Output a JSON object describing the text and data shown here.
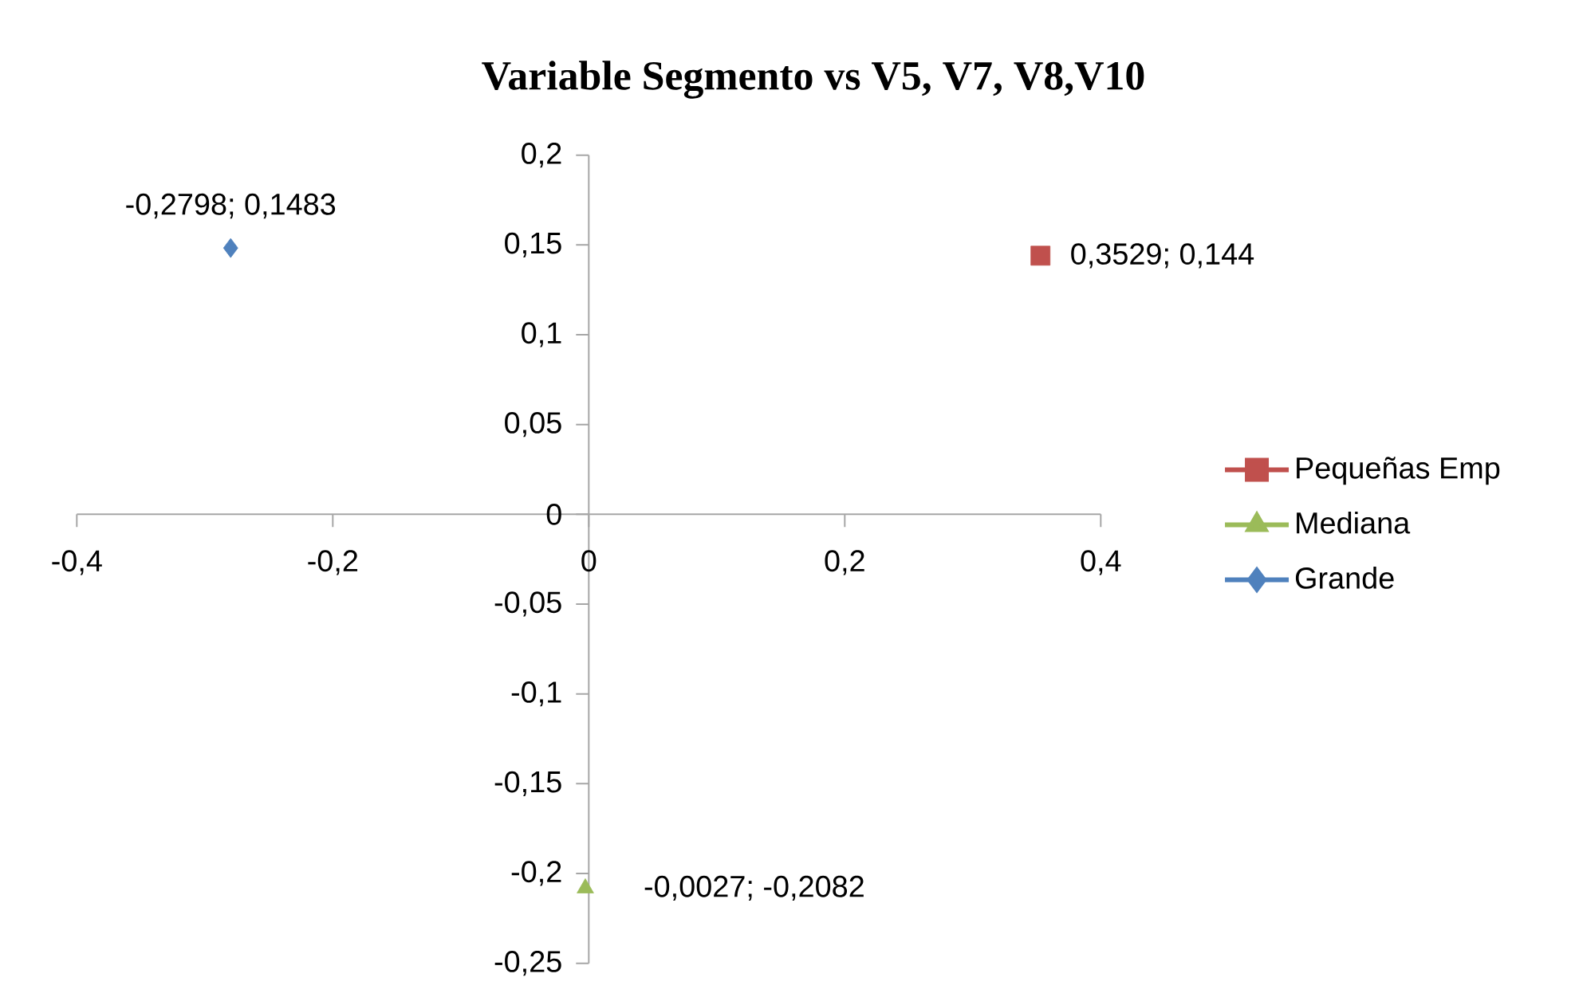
{
  "chart_data": {
    "type": "scatter",
    "title": "Variable Segmento vs V5, V7, V8,V10",
    "xlim": [
      -0.4,
      0.4
    ],
    "ylim": [
      -0.25,
      0.2
    ],
    "xticks": [
      {
        "value": -0.4,
        "label": "-0,4"
      },
      {
        "value": -0.2,
        "label": "-0,2"
      },
      {
        "value": 0,
        "label": "0"
      },
      {
        "value": 0.2,
        "label": "0,2"
      },
      {
        "value": 0.4,
        "label": "0,4"
      }
    ],
    "yticks": [
      {
        "value": -0.25,
        "label": "-0,25"
      },
      {
        "value": -0.2,
        "label": "-0,2"
      },
      {
        "value": -0.15,
        "label": "-0,15"
      },
      {
        "value": -0.1,
        "label": "-0,1"
      },
      {
        "value": -0.05,
        "label": "-0,05"
      },
      {
        "value": 0,
        "label": "0"
      },
      {
        "value": 0.05,
        "label": "0,05"
      },
      {
        "value": 0.1,
        "label": "0,1"
      },
      {
        "value": 0.15,
        "label": "0,15"
      },
      {
        "value": 0.2,
        "label": "0,2"
      }
    ],
    "legend": "right",
    "series": [
      {
        "name": "Pequeñas Emp",
        "color": "#c0504d",
        "marker": "square",
        "x": [
          0.3529
        ],
        "values": [
          0.144
        ],
        "value_labels": [
          "0,3529; 0,144"
        ]
      },
      {
        "name": "Mediana",
        "color": "#9bbb59",
        "marker": "triangle",
        "x": [
          -0.0027
        ],
        "values": [
          -0.2082
        ],
        "value_labels": [
          "-0,0027; -0,2082"
        ]
      },
      {
        "name": "Grande",
        "color": "#4f81bd",
        "marker": "diamond",
        "x": [
          -0.2798
        ],
        "values": [
          0.1483
        ],
        "value_labels": [
          "-0,2798; 0,1483"
        ]
      }
    ]
  }
}
